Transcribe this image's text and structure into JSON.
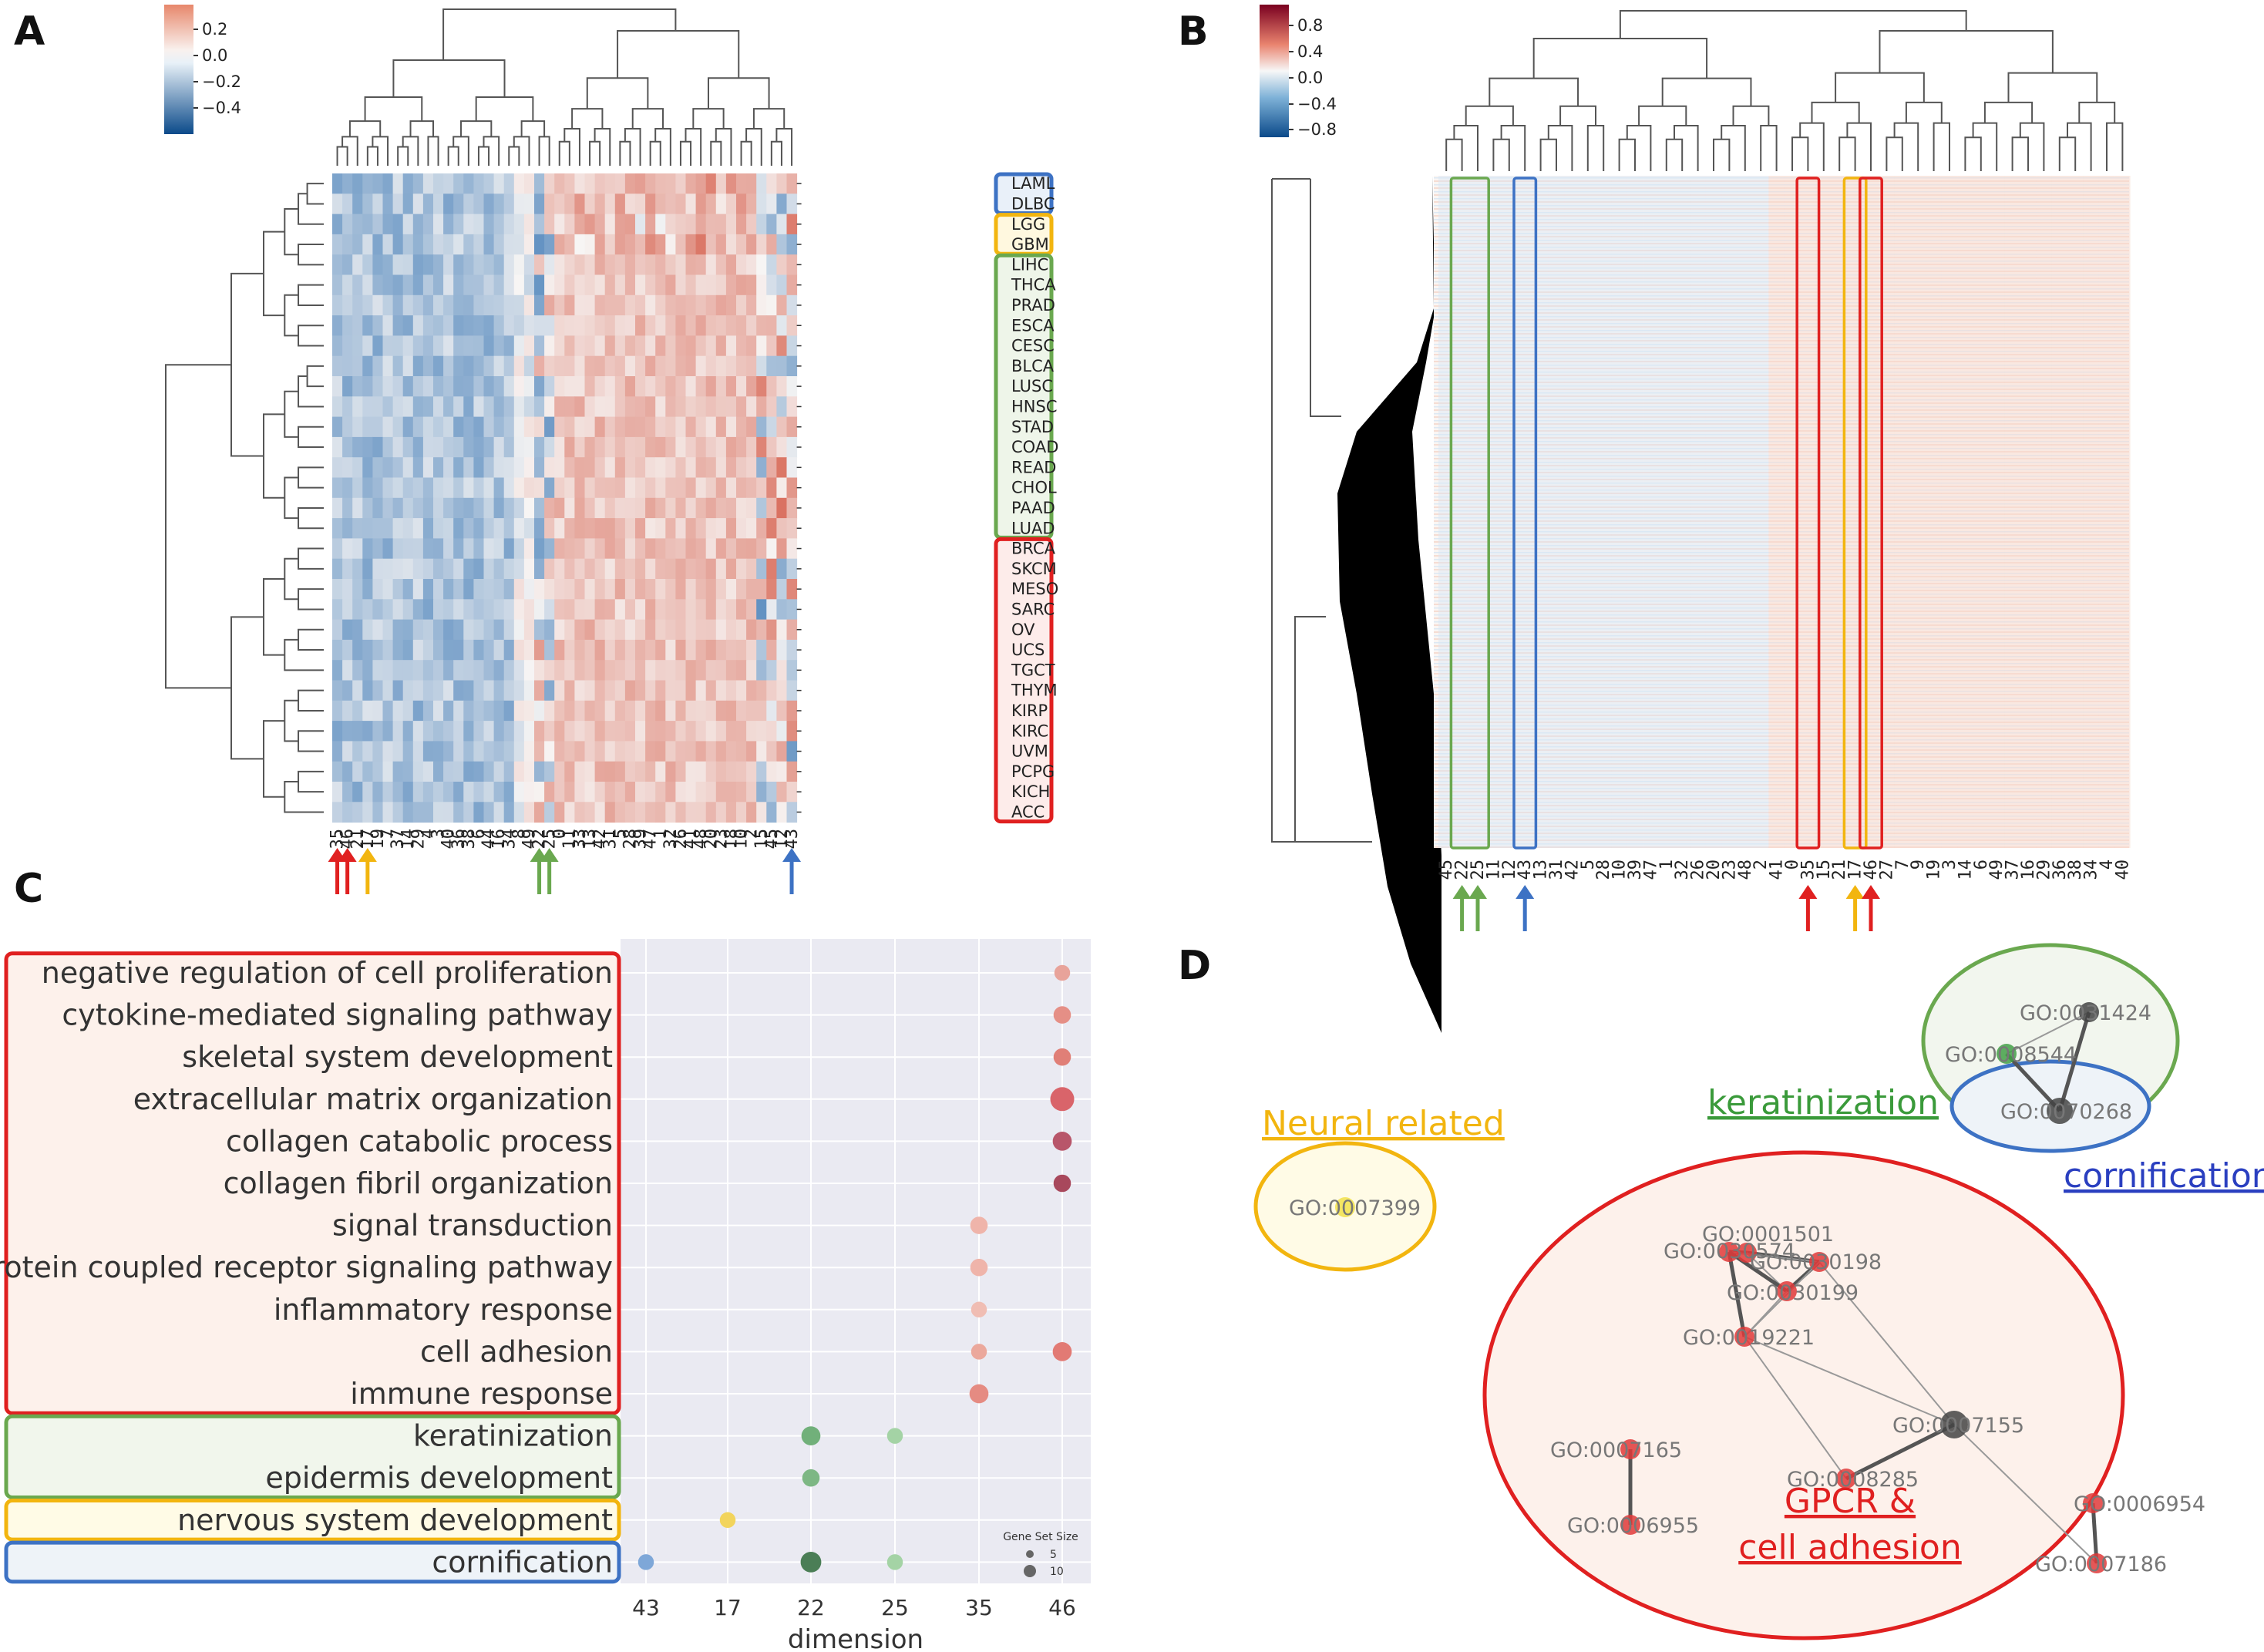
{
  "panels": {
    "a": {
      "label": "A"
    },
    "b": {
      "label": "B"
    },
    "c": {
      "label": "C"
    },
    "d": {
      "label": "D"
    }
  },
  "colors": {
    "red": "#e02020",
    "green": "#6aa84f",
    "yellow": "#f2b50f",
    "blue": "#3d72c4",
    "heat_pos": "#d6604d",
    "heat_neg": "#4393c3"
  },
  "chart_data": [
    {
      "type": "heatmap",
      "panel": "A",
      "title": "",
      "colorbar": {
        "ticks": [
          "0.2",
          "0.0",
          "−0.2",
          "−0.4"
        ],
        "range": [
          -0.5,
          0.3
        ]
      },
      "columns": [
        "35",
        "46",
        "21",
        "17",
        "19",
        "7",
        "37",
        "14",
        "29",
        "4",
        "3",
        "40",
        "36",
        "38",
        "6",
        "44",
        "16",
        "34",
        "8",
        "49",
        "22",
        "25",
        "0",
        "11",
        "33",
        "13",
        "42",
        "31",
        "5",
        "28",
        "39",
        "47",
        "1",
        "32",
        "26",
        "41",
        "48",
        "20",
        "23",
        "18",
        "10",
        "2",
        "15",
        "45",
        "12",
        "43"
      ],
      "rows": [
        "LAML",
        "DLBC",
        "LGG",
        "GBM",
        "LIHC",
        "THCA",
        "PRAD",
        "ESCA",
        "CESC",
        "BLCA",
        "LUSC",
        "HNSC",
        "STAD",
        "COAD",
        "READ",
        "CHOL",
        "PAAD",
        "LUAD",
        "BRCA",
        "SKCM",
        "MESO",
        "SARC",
        "OV",
        "UCS",
        "TGCT",
        "THYM",
        "KIRP",
        "KIRC",
        "UVM",
        "PCPG",
        "KICH",
        "ACC"
      ],
      "row_groups": [
        {
          "color": "blue",
          "rows": [
            "LAML",
            "DLBC"
          ]
        },
        {
          "color": "yellow",
          "rows": [
            "LGG",
            "GBM"
          ]
        },
        {
          "color": "green",
          "rows": [
            "LIHC",
            "THCA",
            "PRAD",
            "ESCA",
            "CESC",
            "BLCA",
            "LUSC",
            "HNSC",
            "STAD",
            "COAD",
            "READ",
            "CHOL",
            "PAAD",
            "LUAD"
          ]
        },
        {
          "color": "red",
          "rows": [
            "BRCA",
            "SKCM",
            "MESO",
            "SARC",
            "OV",
            "UCS",
            "TGCT",
            "THYM",
            "KIRP",
            "KIRC",
            "UVM",
            "PCPG",
            "KICH",
            "ACC"
          ]
        }
      ],
      "arrows": [
        {
          "column": "35",
          "color": "red"
        },
        {
          "column": "46",
          "color": "red"
        },
        {
          "column": "17",
          "color": "yellow"
        },
        {
          "column": "22",
          "color": "green"
        },
        {
          "column": "25",
          "color": "green"
        },
        {
          "column": "43",
          "color": "blue"
        }
      ]
    },
    {
      "type": "heatmap",
      "panel": "B",
      "colorbar": {
        "ticks": [
          "0.8",
          "0.4",
          "0.0",
          "−0.4",
          "−0.8"
        ],
        "range": [
          -1.0,
          1.0
        ]
      },
      "columns": [
        "45",
        "22",
        "25",
        "11",
        "12",
        "43",
        "13",
        "31",
        "42",
        "5",
        "28",
        "10",
        "39",
        "47",
        "1",
        "32",
        "26",
        "20",
        "23",
        "48",
        "2",
        "41",
        "0",
        "35",
        "15",
        "21",
        "17",
        "46",
        "27",
        "7",
        "9",
        "19",
        "3",
        "14",
        "6",
        "49",
        "37",
        "16",
        "29",
        "36",
        "38",
        "34",
        "4",
        "40"
      ],
      "highlight_boxes": [
        {
          "columns": [
            "22",
            "25"
          ],
          "color": "green"
        },
        {
          "columns": [
            "43"
          ],
          "color": "blue"
        },
        {
          "columns": [
            "35"
          ],
          "color": "red"
        },
        {
          "columns": [
            "17"
          ],
          "color": "yellow"
        },
        {
          "columns": [
            "46"
          ],
          "color": "red"
        }
      ],
      "arrows": [
        {
          "column": "22",
          "color": "green"
        },
        {
          "column": "25",
          "color": "green"
        },
        {
          "column": "43",
          "color": "blue"
        },
        {
          "column": "35",
          "color": "red"
        },
        {
          "column": "17",
          "color": "yellow"
        },
        {
          "column": "46",
          "color": "red"
        }
      ]
    },
    {
      "type": "scatter",
      "panel": "C",
      "xlabel": "dimension",
      "x_categories": [
        "43",
        "17",
        "22",
        "25",
        "35",
        "46"
      ],
      "y_categories": [
        "negative regulation of cell proliferation",
        "cytokine-mediated signaling pathway",
        "skeletal system development",
        "extracellular matrix organization",
        "collagen catabolic process",
        "collagen fibril organization",
        "signal transduction",
        "G-protein coupled receptor signaling pathway",
        "inflammatory response",
        "cell adhesion",
        "immune response",
        "keratinization",
        "epidermis development",
        "nervous system development",
        "cornification"
      ],
      "groups": [
        {
          "color": "red",
          "from": 0,
          "to": 10
        },
        {
          "color": "green",
          "from": 11,
          "to": 12
        },
        {
          "color": "yellow",
          "from": 13,
          "to": 13
        },
        {
          "color": "blue",
          "from": 14,
          "to": 14
        }
      ],
      "legend": {
        "title": "Gene Set Size",
        "entries": [
          "5",
          "10"
        ],
        "position": "bottom-right"
      },
      "points": [
        {
          "term": "negative regulation of cell proliferation",
          "dim": "46",
          "size": 5,
          "color": "#e8a39a"
        },
        {
          "term": "cytokine-mediated signaling pathway",
          "dim": "46",
          "size": 6,
          "color": "#e58f86"
        },
        {
          "term": "skeletal system development",
          "dim": "46",
          "size": 6,
          "color": "#e07f77"
        },
        {
          "term": "extracellular matrix organization",
          "dim": "46",
          "size": 10,
          "color": "#d9646a"
        },
        {
          "term": "collagen catabolic process",
          "dim": "46",
          "size": 7,
          "color": "#b8566a"
        },
        {
          "term": "collagen fibril organization",
          "dim": "46",
          "size": 6,
          "color": "#a8485c"
        },
        {
          "term": "signal transduction",
          "dim": "35",
          "size": 6,
          "color": "#efb4aa"
        },
        {
          "term": "G-protein coupled receptor signaling pathway",
          "dim": "35",
          "size": 6,
          "color": "#efb4aa"
        },
        {
          "term": "inflammatory response",
          "dim": "35",
          "size": 5,
          "color": "#f0bdb3"
        },
        {
          "term": "cell adhesion",
          "dim": "35",
          "size": 5,
          "color": "#eba89c"
        },
        {
          "term": "cell adhesion",
          "dim": "46",
          "size": 7,
          "color": "#e27a74"
        },
        {
          "term": "immune response",
          "dim": "35",
          "size": 7,
          "color": "#e58b82"
        },
        {
          "term": "keratinization",
          "dim": "22",
          "size": 7,
          "color": "#71b07a"
        },
        {
          "term": "keratinization",
          "dim": "25",
          "size": 5,
          "color": "#a4d3a5"
        },
        {
          "term": "epidermis development",
          "dim": "22",
          "size": 6,
          "color": "#7db784"
        },
        {
          "term": "nervous system development",
          "dim": "17",
          "size": 5,
          "color": "#f2d45c"
        },
        {
          "term": "cornification",
          "dim": "43",
          "size": 5,
          "color": "#7ea7d8"
        },
        {
          "term": "cornification",
          "dim": "22",
          "size": 8,
          "color": "#4b7e56"
        },
        {
          "term": "cornification",
          "dim": "25",
          "size": 5,
          "color": "#a4d3a5"
        }
      ]
    }
  ],
  "network": {
    "clusters": [
      {
        "label": "Neural related",
        "color": "yellow"
      },
      {
        "label": "keratinization",
        "color": "green"
      },
      {
        "label": "cornification",
        "color": "blue"
      },
      {
        "label": "GPCR &",
        "label2": "cell adhesion",
        "color": "red"
      }
    ],
    "nodes": [
      {
        "id": "GO:0007399",
        "color": "#f2e04a"
      },
      {
        "id": "GO:0031424",
        "color": "#444"
      },
      {
        "id": "GO:0008544",
        "color": "#43a047"
      },
      {
        "id": "GO:0070268",
        "color": "#444"
      },
      {
        "id": "GO:0001501",
        "color": "#e03a3a"
      },
      {
        "id": "GO:0030574",
        "color": "#e03a3a"
      },
      {
        "id": "GO:0030198",
        "color": "#e03a3a"
      },
      {
        "id": "GO:0030199",
        "color": "#e03a3a"
      },
      {
        "id": "GO:0019221",
        "color": "#e03a3a"
      },
      {
        "id": "GO:0007155",
        "color": "#444"
      },
      {
        "id": "GO:0007165",
        "color": "#e03a3a"
      },
      {
        "id": "GO:0008285",
        "color": "#e03a3a"
      },
      {
        "id": "GO:0006955",
        "color": "#e03a3a"
      },
      {
        "id": "GO:0006954",
        "color": "#e03a3a"
      },
      {
        "id": "GO:0007186",
        "color": "#e03a3a"
      }
    ],
    "edges": [
      [
        "GO:0031424",
        "GO:0008544"
      ],
      [
        "GO:0031424",
        "GO:0070268"
      ],
      [
        "GO:0008544",
        "GO:0070268"
      ],
      [
        "GO:0001501",
        "GO:0030574"
      ],
      [
        "GO:0001501",
        "GO:0030198"
      ],
      [
        "GO:0001501",
        "GO:0030199"
      ],
      [
        "GO:0030574",
        "GO:0030198"
      ],
      [
        "GO:0030574",
        "GO:0030199"
      ],
      [
        "GO:0030198",
        "GO:0030199"
      ],
      [
        "GO:0030574",
        "GO:0019221"
      ],
      [
        "GO:0030198",
        "GO:0019221"
      ],
      [
        "GO:0030199",
        "GO:0019221"
      ],
      [
        "GO:0019221",
        "GO:0008285"
      ],
      [
        "GO:0019221",
        "GO:0007155"
      ],
      [
        "GO:0030198",
        "GO:0007155"
      ],
      [
        "GO:0007155",
        "GO:0008285"
      ],
      [
        "GO:0007155",
        "GO:0007186"
      ],
      [
        "GO:0007165",
        "GO:0006955"
      ],
      [
        "GO:0006954",
        "GO:0007186"
      ]
    ]
  }
}
